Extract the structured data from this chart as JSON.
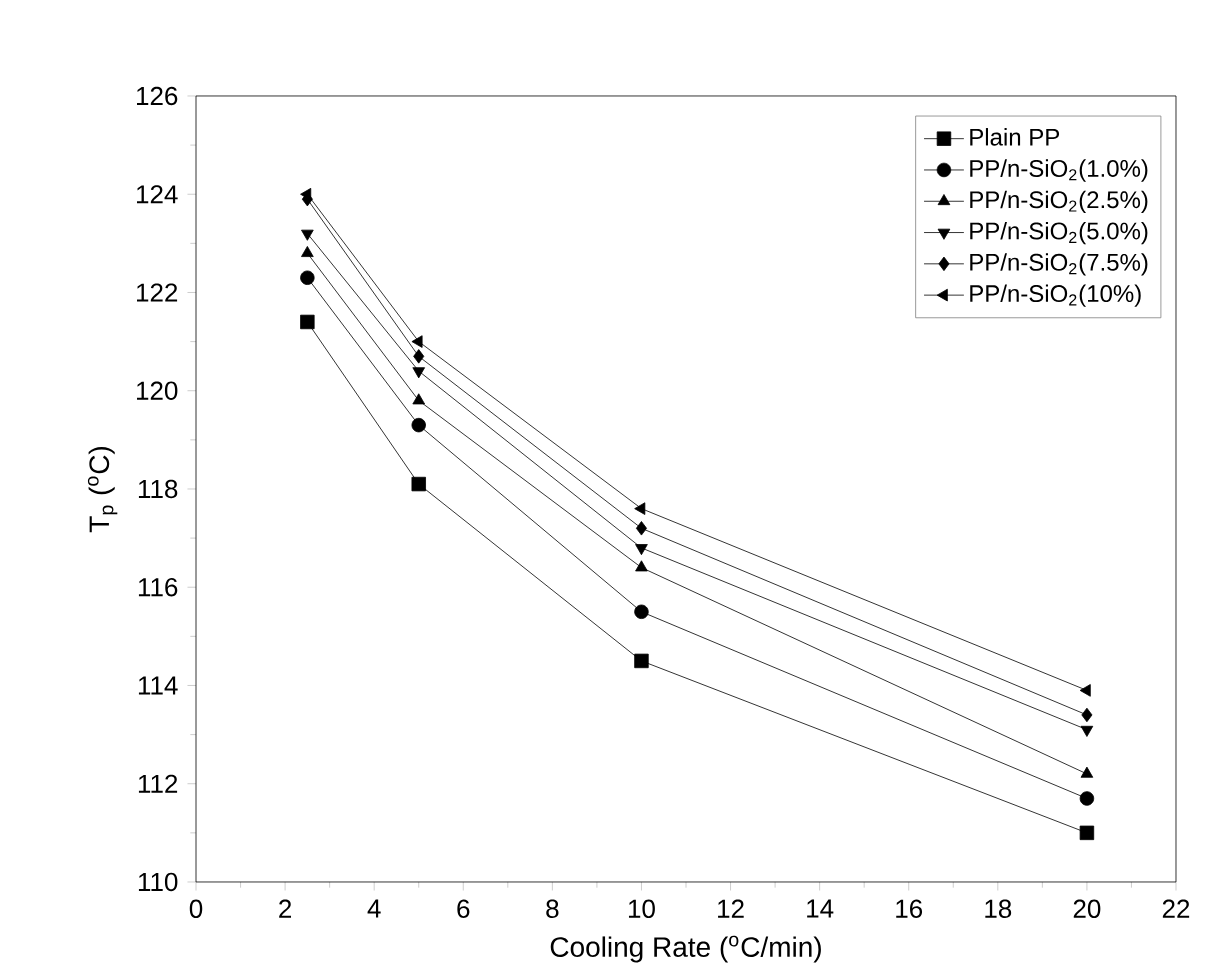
{
  "chart_data": {
    "type": "line",
    "xlabel": "Cooling Rate ($^{o}$C/min)",
    "ylabel": "T$_{p}$ ($^{o}$C)",
    "x": [
      2.5,
      5,
      10,
      20
    ],
    "series": [
      {
        "name": "Plain PP",
        "color": "#000000",
        "marker": "square",
        "values": [
          121.4,
          118.1,
          114.5,
          111.0
        ]
      },
      {
        "name": "PP/n-SiO$_{2}$(1.0%)",
        "color": "#000000",
        "marker": "circle",
        "values": [
          122.3,
          119.3,
          115.5,
          111.7
        ]
      },
      {
        "name": "PP/n-SiO$_{2}$(2.5%)",
        "color": "#000000",
        "marker": "triangle",
        "values": [
          122.8,
          119.8,
          116.4,
          112.2
        ]
      },
      {
        "name": "PP/n-SiO$_{2}$(5.0%)",
        "color": "#000000",
        "marker": "triangle-down",
        "values": [
          123.2,
          120.4,
          116.8,
          113.1
        ]
      },
      {
        "name": "PP/n-SiO$_{2}$(7.5%)",
        "color": "#000000",
        "marker": "diamond",
        "values": [
          123.9,
          120.7,
          117.2,
          113.4
        ]
      },
      {
        "name": "PP/n-SiO$_{2}$(10%)",
        "color": "#000000",
        "marker": "triangle-left",
        "values": [
          124.0,
          121.0,
          117.6,
          113.9
        ]
      }
    ],
    "xlim": [
      0,
      22
    ],
    "xticks": [
      0,
      2,
      4,
      6,
      8,
      10,
      12,
      14,
      16,
      18,
      20,
      22
    ],
    "ylim": [
      110,
      126
    ],
    "yticks": [
      110,
      112,
      114,
      116,
      118,
      120,
      122,
      124,
      126
    ],
    "legend": "top right",
    "line_style": "solid",
    "grid": false
  }
}
